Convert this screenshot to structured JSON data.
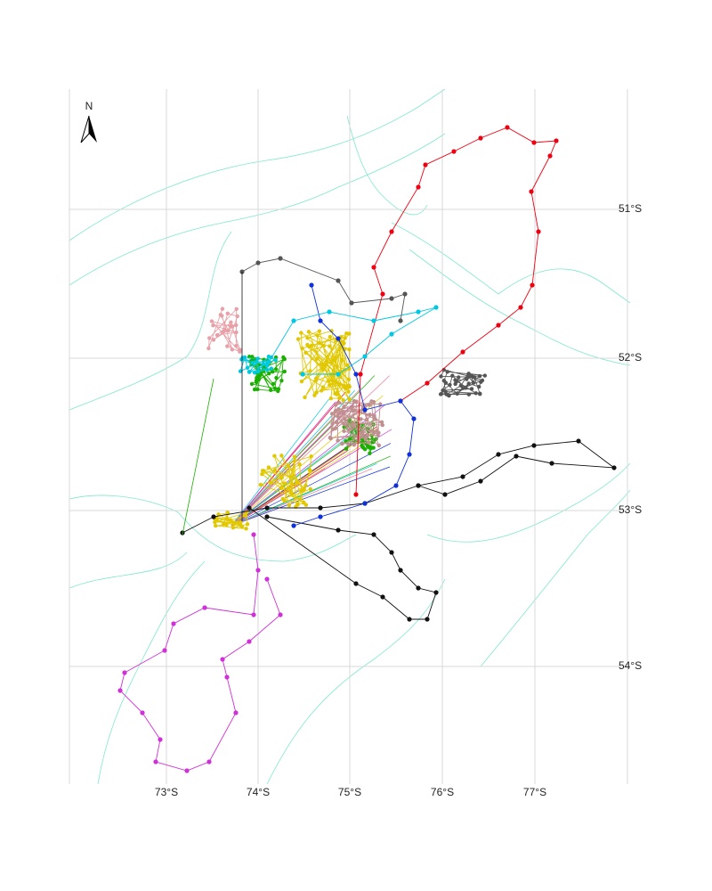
{
  "map": {
    "north_label": "N",
    "x_labels": [
      "73°S",
      "74°S",
      "75°S",
      "76°S",
      "77°S"
    ],
    "y_labels": [
      "51°S",
      "52°S",
      "53°S",
      "54°S"
    ]
  }
}
